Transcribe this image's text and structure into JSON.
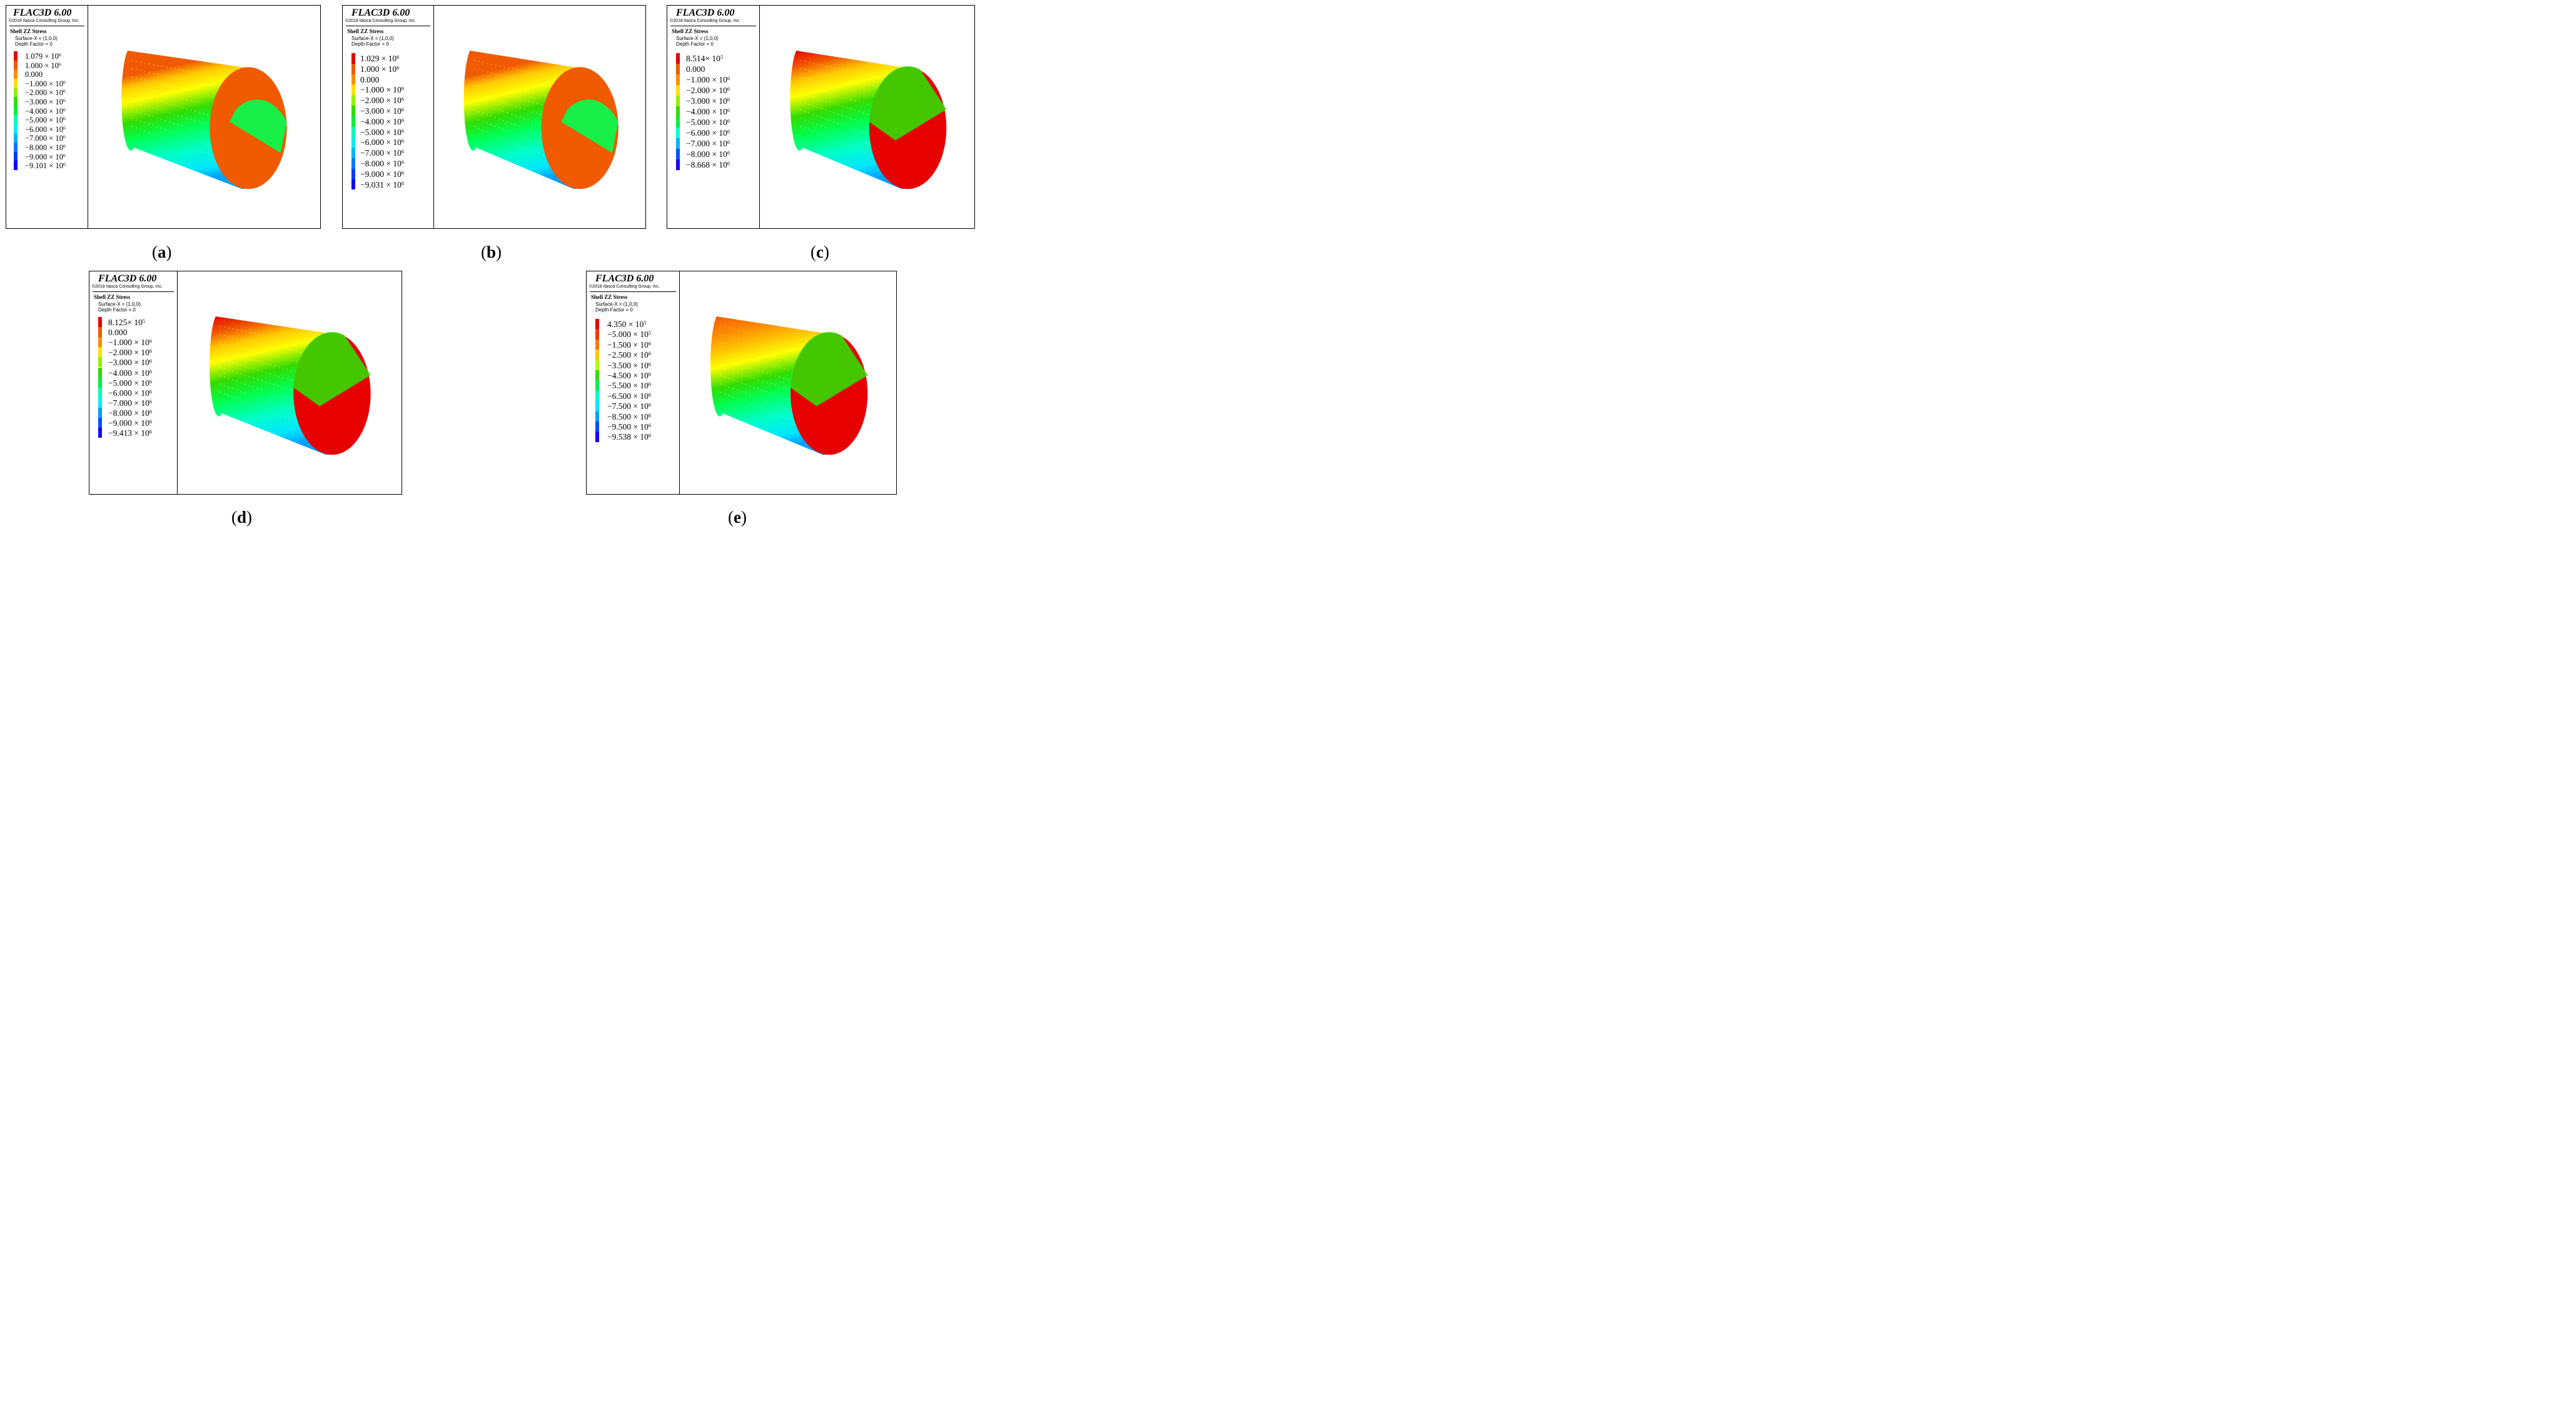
{
  "header": {
    "title": "FLAC3D 6.00",
    "copyright": "©2018 Itasca Consulting Group, Inc.",
    "variable": "Shell ZZ Stress",
    "surface": "Surface-X = (1,0,0)",
    "depth": "Depth Factor = 0"
  },
  "colors": {
    "scale": [
      "#e60000",
      "#f05a00",
      "#ff8c00",
      "#ffc800",
      "#ffff00",
      "#b4ff00",
      "#32dc00",
      "#00ff50",
      "#00ffc8",
      "#00e6ff",
      "#00a0ff",
      "#005aff",
      "#1400ff"
    ]
  },
  "panels": [
    {
      "id": "a",
      "caption": "a",
      "legend": [
        {
          "m": "1.079 × 10",
          "e": "6",
          "color": "#e60000"
        },
        {
          "m": "1.000 × 10",
          "e": "6",
          "color": "#f05a00"
        },
        {
          "m": "0.000",
          "e": "",
          "color": "#ff8c00"
        },
        {
          "m": "−1.000 × 10",
          "e": "6",
          "color": "#ffe000"
        },
        {
          "m": "−2.000 × 10",
          "e": "6",
          "color": "#96f000"
        },
        {
          "m": "−3.000 × 10",
          "e": "6",
          "color": "#32dc00"
        },
        {
          "m": "−4.000 × 10",
          "e": "6",
          "color": "#00f03c"
        },
        {
          "m": "−5.000 × 10",
          "e": "6",
          "color": "#00ffb4"
        },
        {
          "m": "−6.000 × 10",
          "e": "6",
          "color": "#00f0f0"
        },
        {
          "m": "−7.000 × 10",
          "e": "6",
          "color": "#00b4ff"
        },
        {
          "m": "−8.000 × 10",
          "e": "6",
          "color": "#0078ff"
        },
        {
          "m": "−9.000 × 10",
          "e": "6",
          "color": "#003cff"
        },
        {
          "m": "−9.101 × 10",
          "e": "6",
          "color": "#1400ff"
        }
      ]
    },
    {
      "id": "b",
      "caption": "b",
      "legend": [
        {
          "m": "1.029 × 10",
          "e": "6",
          "color": "#e60000"
        },
        {
          "m": "1.000 × 10",
          "e": "6",
          "color": "#f05a00"
        },
        {
          "m": "0.000",
          "e": "",
          "color": "#ff8c00"
        },
        {
          "m": "−1.000 × 10",
          "e": "6",
          "color": "#ffe000"
        },
        {
          "m": "−2.000 × 10",
          "e": "6",
          "color": "#96f000"
        },
        {
          "m": "−3.000 × 10",
          "e": "6",
          "color": "#32dc00"
        },
        {
          "m": "−4.000 × 10",
          "e": "6",
          "color": "#00f03c"
        },
        {
          "m": "−5.000 × 10",
          "e": "6",
          "color": "#00ffb4"
        },
        {
          "m": "−6.000 × 10",
          "e": "6",
          "color": "#00f0f0"
        },
        {
          "m": "−7.000 × 10",
          "e": "6",
          "color": "#00b4ff"
        },
        {
          "m": "−8.000 × 10",
          "e": "6",
          "color": "#0078ff"
        },
        {
          "m": "−9.000 × 10",
          "e": "6",
          "color": "#003cff"
        },
        {
          "m": "−9.031 × 10",
          "e": "6",
          "color": "#1400ff"
        }
      ]
    },
    {
      "id": "c",
      "caption": "c",
      "legend": [
        {
          "m": "8.514× 10",
          "e": "5",
          "color": "#e60000"
        },
        {
          "m": "0.000",
          "e": "",
          "color": "#f05a00"
        },
        {
          "m": "−1.000 × 10",
          "e": "6",
          "color": "#ff8c00"
        },
        {
          "m": "−2.000 × 10",
          "e": "6",
          "color": "#ffe000"
        },
        {
          "m": "−3.000 × 10",
          "e": "6",
          "color": "#96f000"
        },
        {
          "m": "−4.000 × 10",
          "e": "6",
          "color": "#32dc00"
        },
        {
          "m": "−5.000 × 10",
          "e": "6",
          "color": "#00f03c"
        },
        {
          "m": "−6.000 × 10",
          "e": "6",
          "color": "#00ffd2"
        },
        {
          "m": "−7.000 × 10",
          "e": "6",
          "color": "#00b4ff"
        },
        {
          "m": "−8.000 × 10",
          "e": "6",
          "color": "#0050ff"
        },
        {
          "m": "−8.668 × 10",
          "e": "6",
          "color": "#1400ff"
        }
      ]
    },
    {
      "id": "d",
      "caption": "d",
      "legend": [
        {
          "m": "8.125× 10",
          "e": "5",
          "color": "#e60000"
        },
        {
          "m": "0.000",
          "e": "",
          "color": "#f05a00"
        },
        {
          "m": "−1.000 × 10",
          "e": "6",
          "color": "#ff8c00"
        },
        {
          "m": "−2.000 × 10",
          "e": "6",
          "color": "#ffe000"
        },
        {
          "m": "−3.000 × 10",
          "e": "6",
          "color": "#96f000"
        },
        {
          "m": "−4.000 × 10",
          "e": "6",
          "color": "#32dc00"
        },
        {
          "m": "−5.000 × 10",
          "e": "6",
          "color": "#00f03c"
        },
        {
          "m": "−6.000 × 10",
          "e": "6",
          "color": "#00ffb4"
        },
        {
          "m": "−7.000 × 10",
          "e": "6",
          "color": "#00f0f0"
        },
        {
          "m": "−8.000 × 10",
          "e": "6",
          "color": "#00a0ff"
        },
        {
          "m": "−9.000 × 10",
          "e": "6",
          "color": "#0050ff"
        },
        {
          "m": "−9.413 × 10",
          "e": "6",
          "color": "#1400ff"
        }
      ]
    },
    {
      "id": "e",
      "caption": "e",
      "legend": [
        {
          "m": "4.350 × 10",
          "e": "5",
          "color": "#e60000"
        },
        {
          "m": "−5.000 × 10",
          "e": "5",
          "color": "#f03c00"
        },
        {
          "m": "−1.500 × 10",
          "e": "6",
          "color": "#ff7800"
        },
        {
          "m": "−2.500 × 10",
          "e": "6",
          "color": "#ffc800"
        },
        {
          "m": "−3.500 × 10",
          "e": "6",
          "color": "#b4ff00"
        },
        {
          "m": "−4.500 × 10",
          "e": "6",
          "color": "#32dc00"
        },
        {
          "m": "−5.500 × 10",
          "e": "6",
          "color": "#00f050"
        },
        {
          "m": "−6.500 × 10",
          "e": "6",
          "color": "#00ffc8"
        },
        {
          "m": "−7.500 × 10",
          "e": "6",
          "color": "#00e6ff"
        },
        {
          "m": "−8.500 × 10",
          "e": "6",
          "color": "#00a0ff"
        },
        {
          "m": "−9.500 × 10",
          "e": "6",
          "color": "#0050ff"
        },
        {
          "m": "−9.538 × 10",
          "e": "6",
          "color": "#1400ff"
        }
      ]
    }
  ]
}
